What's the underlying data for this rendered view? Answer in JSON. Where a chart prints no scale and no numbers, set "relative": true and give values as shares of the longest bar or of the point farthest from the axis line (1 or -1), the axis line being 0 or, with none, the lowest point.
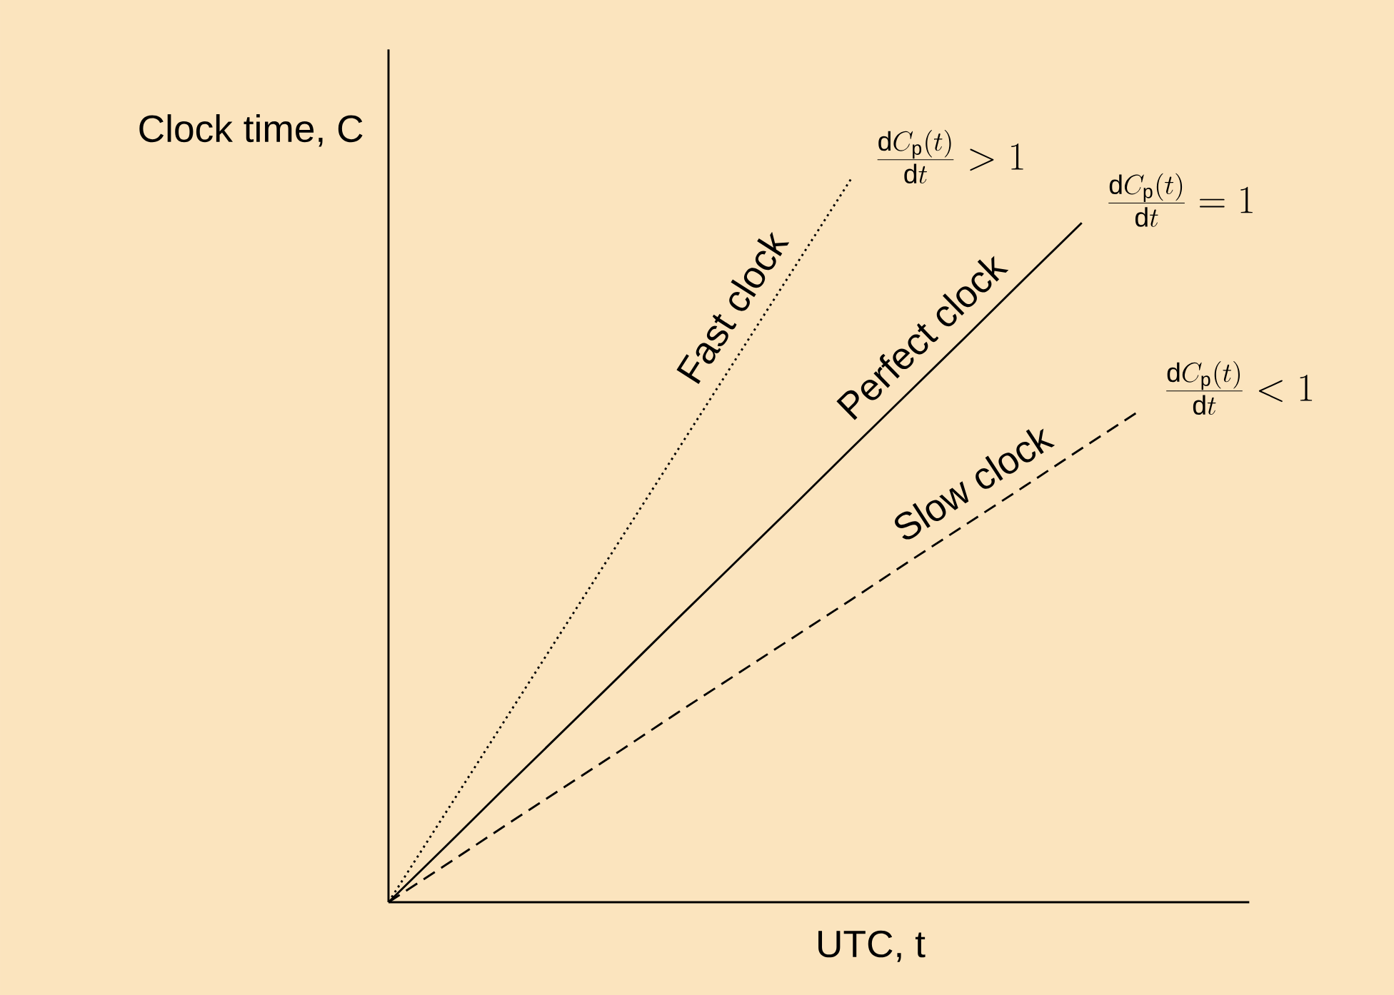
{
  "chart_data": {
    "type": "line",
    "relative": true,
    "xlabel": "UTC, t",
    "ylabel": "Clock time, C",
    "categories": [
      null,
      null,
      null,
      null,
      null,
      null,
      null,
      null,
      null,
      null,
      null,
      null,
      null,
      null
    ],
    "series": [
      {
        "name": "Fast clock",
        "color": "#000000",
        "line_style": "dotted",
        "values": [
          0,
          0.125,
          0.25,
          0.375,
          0.5,
          0.625,
          0.75,
          0.875,
          1,
          null,
          null,
          null,
          null,
          null
        ]
      },
      {
        "name": "Perfect clock",
        "color": "#000000",
        "line_style": "solid",
        "values": [
          0,
          0.078,
          0.157,
          0.235,
          0.313,
          0.392,
          0.47,
          0.548,
          0.627,
          0.705,
          0.783,
          0.862,
          0.94,
          null
        ]
      },
      {
        "name": "Slow clock",
        "color": "#000000",
        "line_style": "dashed",
        "values": [
          0,
          0.052,
          0.105,
          0.157,
          0.209,
          0.262,
          0.314,
          0.366,
          0.418,
          0.471,
          0.523,
          0.575,
          0.628,
          0.68
        ]
      }
    ],
    "annotations": [
      "\\frac{\\mathrm{d}C_\\mathrm{p}(t)}{\\mathrm{d}t} > 1",
      "\\frac{\\mathrm{d}C_\\mathrm{p}(t)}{\\mathrm{d}t} = 1",
      "\\frac{\\mathrm{d}C_\\mathrm{p}(t)}{\\mathrm{d}t} < 1"
    ]
  }
}
